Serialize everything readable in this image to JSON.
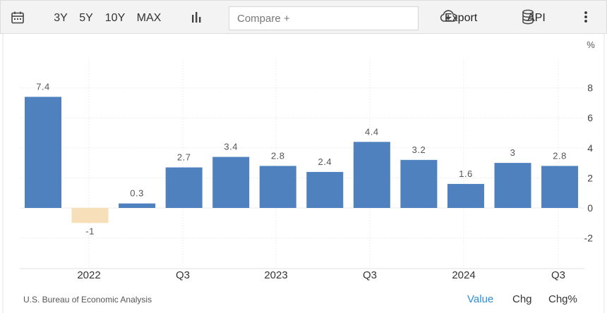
{
  "toolbar": {
    "ranges": [
      "3Y",
      "5Y",
      "10Y",
      "MAX"
    ],
    "compare_placeholder": "Compare +",
    "export_label": "Export",
    "api_label": "API"
  },
  "chart_data": {
    "type": "bar",
    "unit_label": "%",
    "x_tick_labels": [
      "2022",
      "Q3",
      "2023",
      "Q3",
      "2024",
      "Q3"
    ],
    "values": [
      7.4,
      -1,
      0.3,
      2.7,
      3.4,
      2.8,
      2.4,
      4.4,
      3.2,
      1.6,
      3,
      2.8
    ],
    "data_labels": [
      "7.4",
      "-1",
      "0.3",
      "2.7",
      "3.4",
      "2.8",
      "2.4",
      "4.4",
      "3.2",
      "1.6",
      "3",
      "2.8"
    ],
    "y_ticks": [
      8,
      6,
      4,
      2,
      0,
      -2
    ],
    "ylim": [
      -3.4,
      8.5
    ],
    "colors": {
      "positive": "#4e81bd",
      "negative": "#f7dfb9"
    },
    "grid": true
  },
  "footer": {
    "source": "U.S. Bureau of Economic Analysis",
    "modes": [
      "Value",
      "Chg",
      "Chg%"
    ],
    "active_mode_color": "#2f8fd8"
  }
}
